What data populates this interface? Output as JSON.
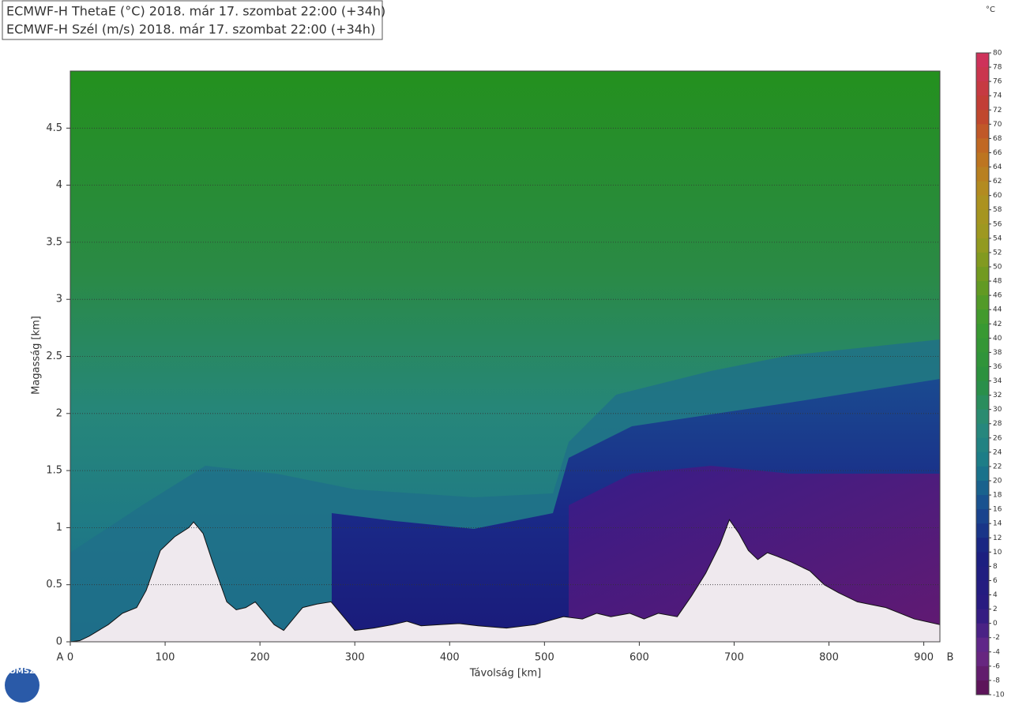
{
  "chart_data": {
    "type": "cross-section",
    "legend_lines": [
      "ECMWF-H ThetaE (°C) 2018. már 17. szombat 22:00 (+34h)",
      "ECMWF-H Szél (m/s) 2018. már 17. szombat 22:00 (+34h)"
    ],
    "x_label": "Távolság [km]",
    "y_label": "Magasság [km]",
    "start_label": "A",
    "end_label": "B",
    "xlim": [
      0,
      917
    ],
    "xticks": [
      0,
      100,
      200,
      300,
      400,
      500,
      600,
      700,
      800,
      900
    ],
    "ylim": [
      0,
      5
    ],
    "yticks": [
      0,
      0.5,
      1,
      1.5,
      2,
      2.5,
      3,
      3.5,
      4,
      4.5
    ],
    "grid": true,
    "terrain": {
      "color": "#efe9ee",
      "x": [
        0,
        10,
        20,
        40,
        55,
        70,
        80,
        95,
        110,
        125,
        130,
        140,
        150,
        165,
        175,
        185,
        195,
        205,
        215,
        225,
        235,
        245,
        260,
        275,
        290,
        300,
        320,
        340,
        355,
        370,
        390,
        410,
        430,
        460,
        490,
        520,
        540,
        555,
        570,
        590,
        605,
        620,
        640,
        655,
        670,
        685,
        695,
        705,
        715,
        725,
        735,
        745,
        760,
        780,
        795,
        810,
        830,
        860,
        890,
        917
      ],
      "values": [
        0,
        0.01,
        0.05,
        0.15,
        0.25,
        0.3,
        0.45,
        0.8,
        0.92,
        1.0,
        1.05,
        0.95,
        0.7,
        0.35,
        0.28,
        0.3,
        0.35,
        0.25,
        0.15,
        0.1,
        0.2,
        0.3,
        0.33,
        0.35,
        0.2,
        0.1,
        0.12,
        0.15,
        0.18,
        0.14,
        0.15,
        0.16,
        0.14,
        0.12,
        0.15,
        0.22,
        0.2,
        0.25,
        0.22,
        0.25,
        0.2,
        0.25,
        0.22,
        0.4,
        0.6,
        0.85,
        1.07,
        0.95,
        0.8,
        0.72,
        0.78,
        0.75,
        0.7,
        0.62,
        0.5,
        0.43,
        0.35,
        0.3,
        0.2,
        0.15
      ]
    },
    "colorbar": {
      "unit": "°C",
      "ticks": [
        80,
        78,
        76,
        74,
        72,
        70,
        68,
        66,
        64,
        62,
        60,
        58,
        56,
        54,
        52,
        50,
        48,
        46,
        44,
        42,
        40,
        38,
        36,
        34,
        32,
        30,
        28,
        26,
        24,
        22,
        20,
        18,
        16,
        14,
        12,
        10,
        8,
        6,
        4,
        2,
        0,
        -2,
        -4,
        -6,
        -8,
        -10
      ],
      "stops": [
        {
          "value": -10,
          "color": "#5a1050"
        },
        {
          "value": -4,
          "color": "#6a2a8a"
        },
        {
          "value": 2,
          "color": "#2a1a80"
        },
        {
          "value": 10,
          "color": "#1a2080"
        },
        {
          "value": 16,
          "color": "#1a4a90"
        },
        {
          "value": 22,
          "color": "#1a7a8a"
        },
        {
          "value": 28,
          "color": "#2a8a7a"
        },
        {
          "value": 34,
          "color": "#2a9040"
        },
        {
          "value": 42,
          "color": "#3a9a30"
        },
        {
          "value": 48,
          "color": "#6a9a20"
        },
        {
          "value": 54,
          "color": "#9a9a20"
        },
        {
          "value": 60,
          "color": "#b09020"
        },
        {
          "value": 66,
          "color": "#c07020"
        },
        {
          "value": 72,
          "color": "#c04030"
        },
        {
          "value": 80,
          "color": "#d03060"
        }
      ]
    },
    "logo": "OMSZ"
  }
}
